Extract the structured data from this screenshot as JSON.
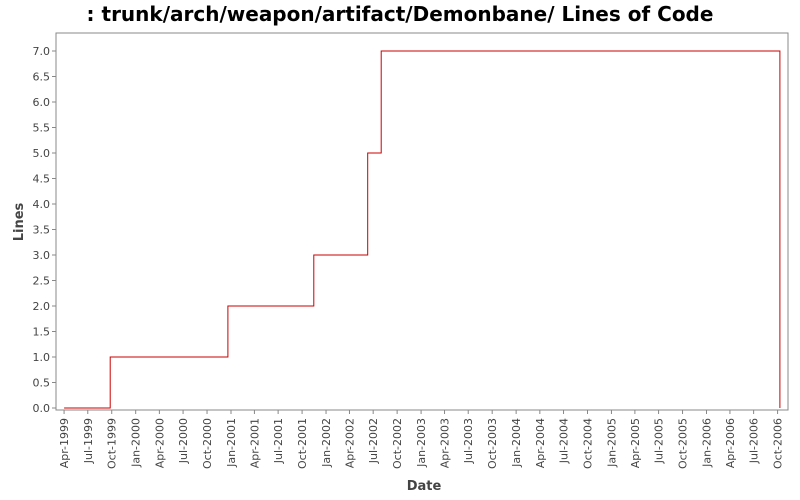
{
  "chart_data": {
    "type": "line",
    "step": true,
    "title": ": trunk/arch/weapon/artifact/Demonbane/ Lines of Code",
    "xlabel": "Date",
    "ylabel": "Lines",
    "ylim": [
      0.0,
      7.0
    ],
    "y_ticks": [
      "0.0",
      "0.5",
      "1.0",
      "1.5",
      "2.0",
      "2.5",
      "3.0",
      "3.5",
      "4.0",
      "4.5",
      "5.0",
      "5.5",
      "6.0",
      "6.5",
      "7.0"
    ],
    "x_ticks": [
      "Apr-1999",
      "Jul-1999",
      "Oct-1999",
      "Jan-2000",
      "Apr-2000",
      "Jul-2000",
      "Oct-2000",
      "Jan-2001",
      "Apr-2001",
      "Jul-2001",
      "Oct-2001",
      "Jan-2002",
      "Apr-2002",
      "Jul-2002",
      "Oct-2002",
      "Jan-2003",
      "Apr-2003",
      "Jul-2003",
      "Oct-2003",
      "Jan-2004",
      "Apr-2004",
      "Jul-2004",
      "Oct-2004",
      "Jan-2005",
      "Apr-2005",
      "Jul-2005",
      "Oct-2005",
      "Jan-2006",
      "Apr-2006",
      "Jul-2006",
      "Oct-2006"
    ],
    "x_range": [
      "1999-03-01",
      "2006-11-10"
    ],
    "series": [
      {
        "color": "#cc0000",
        "points": [
          {
            "x": "1999-04-01",
            "y": 0
          },
          {
            "x": "1999-09-25",
            "y": 1
          },
          {
            "x": "2000-12-20",
            "y": 2
          },
          {
            "x": "2001-11-15",
            "y": 3
          },
          {
            "x": "2002-06-10",
            "y": 5
          },
          {
            "x": "2002-08-01",
            "y": 7
          },
          {
            "x": "2006-10-10",
            "y": 0
          }
        ]
      }
    ],
    "grid": false,
    "legend": "none"
  }
}
